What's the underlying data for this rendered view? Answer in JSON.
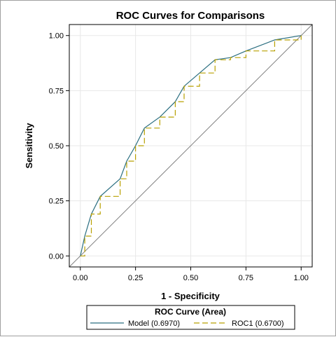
{
  "chart_data": {
    "type": "line",
    "title": "ROC Curves for Comparisons",
    "xlabel": "1 - Specificity",
    "ylabel": "Sensitivity",
    "xlim": [
      -0.05,
      1.05
    ],
    "ylim": [
      -0.05,
      1.05
    ],
    "x_ticks": [
      0,
      0.25,
      0.5,
      0.75,
      1
    ],
    "x_tick_labels": [
      "0.00",
      "0.25",
      "0.50",
      "0.75",
      "1.00"
    ],
    "y_ticks": [
      0,
      0.25,
      0.5,
      0.75,
      1
    ],
    "y_tick_labels": [
      "0.00",
      "0.25",
      "0.50",
      "0.75",
      "1.00"
    ],
    "grid": true,
    "legend": {
      "title": "ROC Curve (Area)",
      "placement": "bottom"
    },
    "series": [
      {
        "name": "Model",
        "area_label": "(0.6970)",
        "color": "#2a6e80",
        "style": "solid",
        "points": [
          [
            0,
            0
          ],
          [
            0.02,
            0.09
          ],
          [
            0.05,
            0.19
          ],
          [
            0.09,
            0.27
          ],
          [
            0.18,
            0.35
          ],
          [
            0.21,
            0.43
          ],
          [
            0.25,
            0.5
          ],
          [
            0.29,
            0.58
          ],
          [
            0.36,
            0.63
          ],
          [
            0.43,
            0.7
          ],
          [
            0.47,
            0.77
          ],
          [
            0.54,
            0.83
          ],
          [
            0.61,
            0.89
          ],
          [
            0.68,
            0.9
          ],
          [
            0.75,
            0.93
          ],
          [
            0.88,
            0.98
          ],
          [
            1,
            1
          ]
        ]
      },
      {
        "name": "ROC1",
        "area_label": "(0.6700)",
        "color": "#b8a000",
        "style": "dashed-step",
        "points": [
          [
            0,
            0
          ],
          [
            0.02,
            0
          ],
          [
            0.02,
            0.09
          ],
          [
            0.05,
            0.09
          ],
          [
            0.05,
            0.19
          ],
          [
            0.09,
            0.19
          ],
          [
            0.09,
            0.27
          ],
          [
            0.18,
            0.27
          ],
          [
            0.18,
            0.35
          ],
          [
            0.21,
            0.35
          ],
          [
            0.21,
            0.43
          ],
          [
            0.25,
            0.43
          ],
          [
            0.25,
            0.5
          ],
          [
            0.29,
            0.5
          ],
          [
            0.29,
            0.58
          ],
          [
            0.36,
            0.58
          ],
          [
            0.36,
            0.63
          ],
          [
            0.43,
            0.63
          ],
          [
            0.43,
            0.7
          ],
          [
            0.47,
            0.7
          ],
          [
            0.47,
            0.77
          ],
          [
            0.54,
            0.77
          ],
          [
            0.54,
            0.83
          ],
          [
            0.61,
            0.83
          ],
          [
            0.61,
            0.89
          ],
          [
            0.68,
            0.89
          ],
          [
            0.68,
            0.9
          ],
          [
            0.75,
            0.9
          ],
          [
            0.75,
            0.93
          ],
          [
            0.88,
            0.93
          ],
          [
            0.88,
            0.98
          ],
          [
            1,
            0.98
          ],
          [
            1,
            1
          ]
        ]
      }
    ],
    "reference_line": {
      "from": [
        -0.05,
        -0.05
      ],
      "to": [
        1.05,
        1.05
      ],
      "color": "#808080"
    }
  }
}
